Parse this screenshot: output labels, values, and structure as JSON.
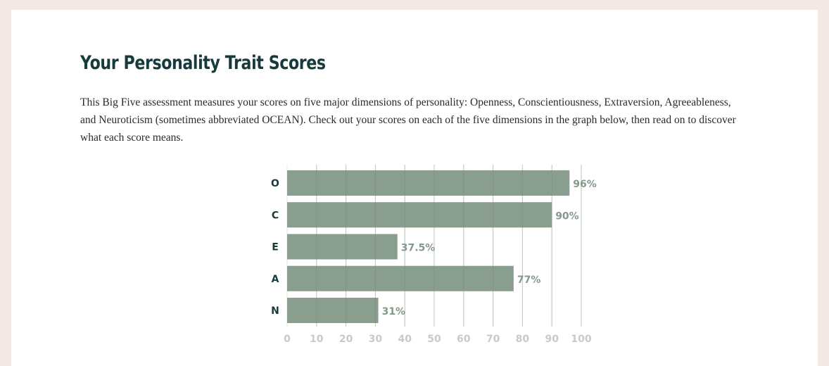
{
  "page": {
    "title": "Your Personality Trait Scores",
    "intro": "This Big Five assessment measures your scores on five major dimensions of personality: Openness, Conscientiousness, Extraversion, Agreeableness, and Neuroticism (sometimes abbreviated OCEAN). Check out your scores on each of the five dimensions in the graph below, then read on to discover what each score means."
  },
  "colors": {
    "bar": "#84998a",
    "value_label": "#84998a",
    "category_label": "#173a3c",
    "grid": "#e6e6e6",
    "tick_label": "#c9c9c9"
  },
  "chart_data": {
    "type": "bar",
    "orientation": "horizontal",
    "categories": [
      "O",
      "C",
      "E",
      "A",
      "N"
    ],
    "values": [
      96,
      90,
      37.5,
      77,
      31
    ],
    "value_labels": [
      "96%",
      "90%",
      "37.5%",
      "77%",
      "31%"
    ],
    "xlim": [
      0,
      100
    ],
    "x_ticks": [
      0,
      10,
      20,
      30,
      40,
      50,
      60,
      70,
      80,
      90,
      100
    ],
    "x_tick_labels": [
      "0",
      "10",
      "20",
      "30",
      "40",
      "50",
      "60",
      "70",
      "80",
      "90",
      "100"
    ],
    "grid": true,
    "legend": "none"
  }
}
